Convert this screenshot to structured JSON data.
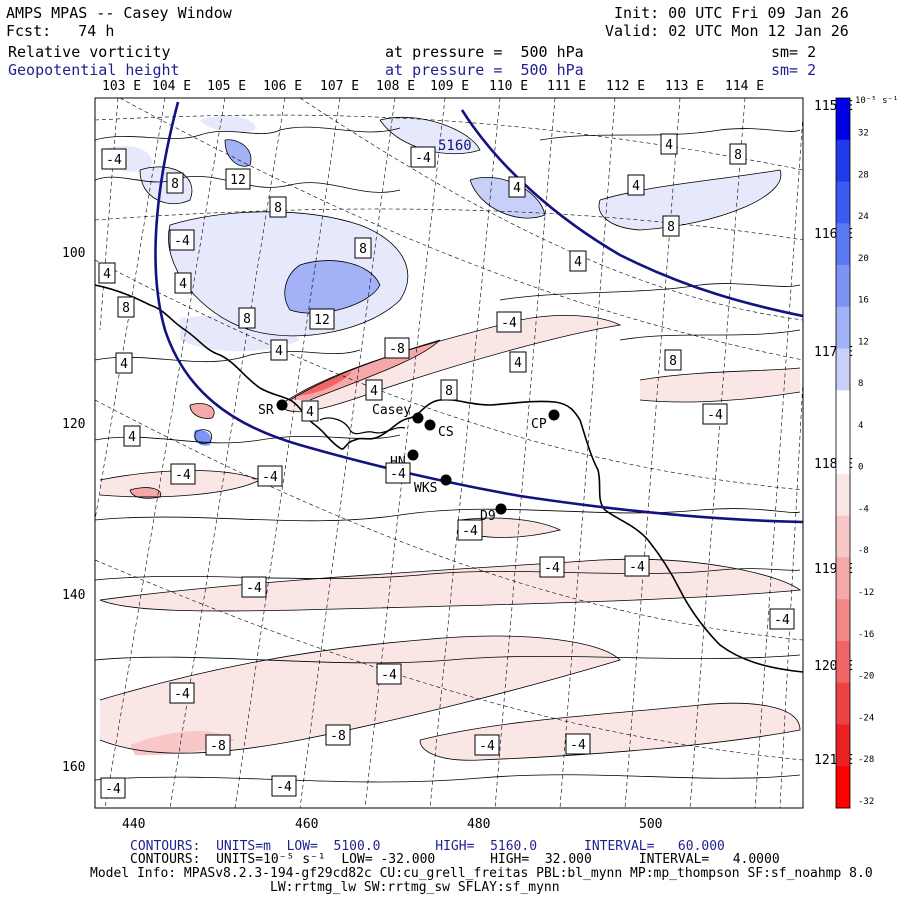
{
  "header": {
    "title": "AMPS MPAS -- Casey Window",
    "fcst": "Fcst:   74 h",
    "init": "Init: 00 UTC Fri 09 Jan 26",
    "valid": "Valid: 02 UTC Mon 12 Jan 26",
    "field1": {
      "name": "Relative vorticity",
      "level": "at pressure =  500 hPa",
      "sm": "sm= 2"
    },
    "field2": {
      "name": "Geopotential height",
      "level": "at pressure =  500 hPa",
      "sm": "sm= 2"
    }
  },
  "map": {
    "top_lon_labels": [
      "103 E",
      "104 E",
      "105 E",
      "106 E",
      "107 E",
      "108 E",
      "109 E",
      "110 E",
      "111 E",
      "112 E",
      "113 E",
      "114 E"
    ],
    "right_lon_labels": [
      "115 E",
      "116 E",
      "117 E",
      "118 E",
      "119 E",
      "120 E",
      "121 E"
    ],
    "x_ticks": [
      "440",
      "460",
      "480",
      "500"
    ],
    "y_ticks": [
      "100",
      "120",
      "140",
      "160"
    ],
    "height_contour_label": "5160",
    "stations": [
      {
        "id": "SR",
        "label": "SR"
      },
      {
        "id": "casey",
        "label": "Casey"
      },
      {
        "id": "cs",
        "label": "CS"
      },
      {
        "id": "cp",
        "label": "CP"
      },
      {
        "id": "hn",
        "label": "HN"
      },
      {
        "id": "wks",
        "label": "WKS"
      },
      {
        "id": "d9",
        "label": "D9"
      }
    ],
    "vorticity_boxes": [
      "-4",
      "4",
      "8",
      "12",
      "-8"
    ]
  },
  "colorbar": {
    "unit": "10⁻⁵ s⁻¹",
    "labels": [
      "32",
      "28",
      "24",
      "20",
      "16",
      "12",
      "8",
      "4",
      "0",
      "-4",
      "-8",
      "-12",
      "-16",
      "-20",
      "-24",
      "-28",
      "-32"
    ],
    "colors": [
      "#0000e6",
      "#1f3bea",
      "#3b5aef",
      "#5a78f2",
      "#7d94f5",
      "#a3b2f7",
      "#c8d0fa",
      "#ffffff",
      "#ffffff",
      "#fbe6e6",
      "#f8c8c8",
      "#f5a8a8",
      "#f38888",
      "#f06666",
      "#ec4444",
      "#e82222",
      "#ff0000"
    ]
  },
  "footer": {
    "line1": {
      "label": "CONTOURS:",
      "units": "UNITS=m",
      "low": "LOW=  5100.0",
      "high": "HIGH=  5160.0",
      "interval": "INTERVAL=   60.000"
    },
    "line2": {
      "label": "CONTOURS:",
      "units": "UNITS=10⁻⁵ s⁻¹",
      "low": "LOW= -32.000",
      "high": "HIGH=  32.000",
      "interval": "INTERVAL=   4.0000"
    },
    "model_info": "Model Info: MPASv8.2.3-194-gf29cd82c CU:cu_grell_freitas PBL:bl_mynn MP:mp_thompson SF:sf_noahmp 8.0",
    "model_info2": "LW:rrtmg_lw SW:rrtmg_sw SFLAY:sf_mynn"
  }
}
